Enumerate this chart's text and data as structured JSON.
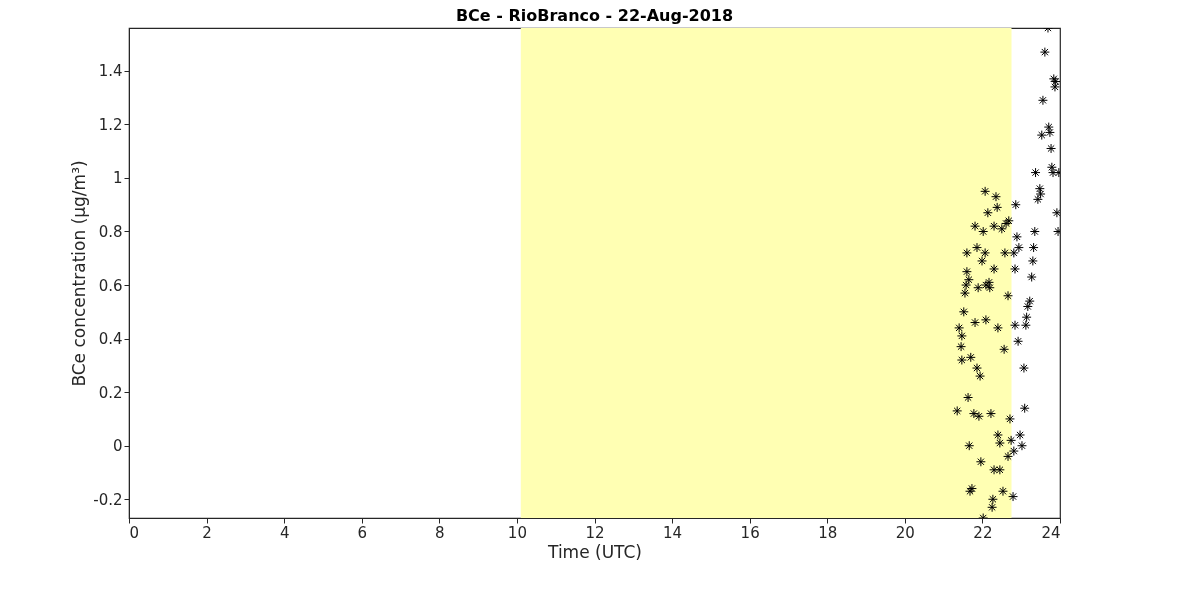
{
  "chart_data": {
    "type": "scatter",
    "title": "BCe - RioBranco - 22-Aug-2018",
    "xlabel": "Time (UTC)",
    "ylabel": "BCe concentration (μg/m³)",
    "xlim": [
      0,
      24
    ],
    "xticks": [
      0,
      2,
      4,
      6,
      8,
      10,
      12,
      14,
      16,
      18,
      20,
      22,
      24
    ],
    "ylim": [
      -0.27,
      1.56
    ],
    "yticks": [
      -0.2,
      0,
      0.2,
      0.4,
      0.6,
      0.8,
      1,
      1.2,
      1.4
    ],
    "grid": false,
    "marker": "cross",
    "bands": [
      {
        "axis": "x",
        "from": 10.1,
        "to": 22.75,
        "color": "#ffffb3"
      }
    ],
    "series": [
      {
        "color": "#000000",
        "x": [
          21.35,
          21.4,
          21.45,
          21.47,
          21.47,
          21.52,
          21.55,
          21.58,
          21.6,
          21.6,
          21.65,
          21.63,
          21.66,
          21.68,
          21.73,
          21.7,
          21.78,
          21.81,
          21.81,
          21.86,
          21.86,
          21.91,
          21.89,
          21.94,
          21.96,
          22.02,
          21.99,
          22.02,
          22.07,
          22.07,
          22.09,
          22.09,
          22.14,
          22.17,
          22.19,
          22.22,
          22.25,
          22.27,
          22.3,
          22.3,
          22.3,
          22.35,
          22.38,
          22.4,
          22.4,
          22.45,
          22.45,
          22.5,
          22.53,
          22.56,
          22.58,
          22.61,
          22.66,
          22.66,
          22.68,
          22.71,
          22.74,
          22.79,
          22.81,
          22.81,
          22.84,
          22.86,
          22.84,
          22.89,
          22.92,
          22.94,
          22.97,
          23.02,
          23.07,
          23.09,
          23.12,
          23.14,
          23.17,
          23.22,
          23.27,
          23.3,
          23.32,
          23.35,
          23.37,
          23.43,
          23.48,
          23.5,
          23.53,
          23.56,
          23.61,
          23.69,
          23.71,
          23.74,
          23.77,
          23.79,
          23.82,
          23.84,
          23.87,
          23.89,
          23.92,
          23.95,
          23.97
        ],
        "values": [
          0.13,
          0.44,
          0.37,
          0.32,
          0.41,
          0.5,
          0.57,
          0.6,
          0.72,
          0.65,
          0.62,
          0.18,
          0,
          -0.17,
          -0.16,
          0.33,
          0.12,
          0.82,
          0.46,
          0.74,
          0.29,
          0.11,
          0.59,
          0.26,
          -0.06,
          -0.27,
          0.69,
          0.8,
          0.95,
          0.72,
          0.47,
          0.6,
          0.87,
          0.61,
          0.59,
          0.12,
          -0.23,
          -0.2,
          -0.09,
          0.66,
          0.82,
          0.93,
          0.89,
          0.44,
          0.04,
          -0.09,
          0.01,
          0.81,
          -0.17,
          0.36,
          0.72,
          0.83,
          0.56,
          -0.04,
          0.84,
          0.1,
          0.02,
          -0.19,
          -0.02,
          0.72,
          0.66,
          0.9,
          0.45,
          0.78,
          0.39,
          0.74,
          0.04,
          0,
          0.29,
          0.14,
          0.45,
          0.48,
          0.52,
          0.54,
          0.63,
          0.69,
          0.74,
          0.8,
          1.02,
          0.92,
          0.96,
          0.94,
          1.16,
          1.29,
          1.47,
          1.56,
          1.19,
          1.17,
          1.11,
          1.04,
          1.02,
          1.37,
          1.34,
          1.36,
          0.87,
          0.8,
          1.02
        ]
      }
    ]
  }
}
